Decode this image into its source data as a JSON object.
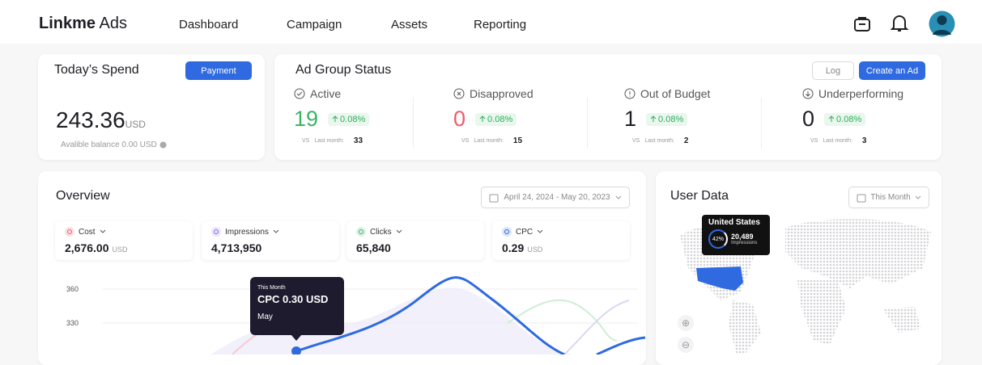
{
  "header": {
    "logo_brand": "Linkme",
    "logo_suffix": "Ads",
    "nav": [
      "Dashboard",
      "Campaign",
      "Assets",
      "Reporting"
    ]
  },
  "spend": {
    "title": "Today’s Spend",
    "button": "Payment",
    "amount": "243.36",
    "currency": "USD",
    "balance": "Avalible balance 0.00 USD"
  },
  "ad_group_status": {
    "title": "Ad Group Status",
    "buttons": [
      "Log",
      "Create an Ad"
    ],
    "items": [
      {
        "label": "Active",
        "value": 19,
        "change": "0.08%",
        "compare_label": "VS",
        "compare_period": "Last month:",
        "compare_value": 33
      },
      {
        "label": "Disapproved",
        "value": 0,
        "change": "0.08%",
        "compare_label": "VS",
        "compare_period": "Last month:",
        "compare_value": 15
      },
      {
        "label": "Out of Budget",
        "value": 1,
        "change": "0.08%",
        "compare_label": "VS",
        "compare_period": "Last month:",
        "compare_value": 2
      },
      {
        "label": "Underperforming",
        "value": 0,
        "change": "0.08%",
        "compare_label": "VS",
        "compare_period": "Last month:",
        "compare_value": 3
      }
    ]
  },
  "overview": {
    "title": "Overview",
    "date_range": "April 24, 2024 - May 20, 2023",
    "metrics": [
      {
        "label": "Cost",
        "value": "2,676.00",
        "unit": "USD"
      },
      {
        "label": "Impressions",
        "value": "4,713,950"
      },
      {
        "label": "Clicks",
        "value": "65,840"
      },
      {
        "label": "CPC",
        "value": "0.29",
        "unit": "USD"
      }
    ],
    "yticks": [
      360,
      330
    ],
    "tooltip": {
      "period": "This Month",
      "text": "CPC 0.30 USD",
      "month": "May"
    }
  },
  "user_data": {
    "title": "User Data",
    "filter": "This Month",
    "tooltip": {
      "country": "United States",
      "share": "42%",
      "value": "20,489",
      "label": "Impressions"
    }
  }
}
